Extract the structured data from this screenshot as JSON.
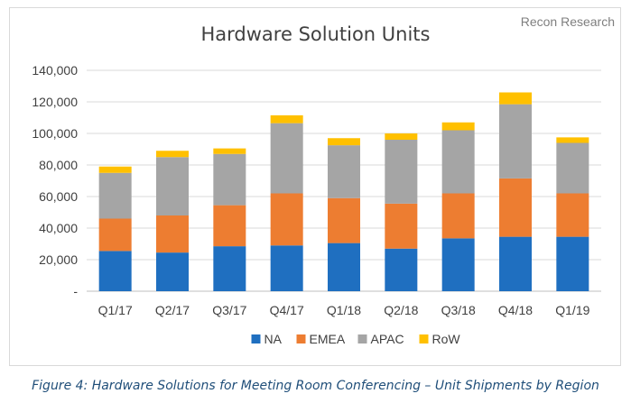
{
  "watermark": "Recon Research",
  "caption": "Figure 4: Hardware Solutions for Meeting Room Conferencing – Unit Shipments by Region",
  "chart_data": {
    "type": "bar",
    "stacked": true,
    "title": "Hardware Solution Units",
    "xlabel": "",
    "ylabel": "",
    "categories": [
      "Q1/17",
      "Q2/17",
      "Q3/17",
      "Q4/17",
      "Q1/18",
      "Q2/18",
      "Q3/18",
      "Q4/18",
      "Q1/19"
    ],
    "series": [
      {
        "name": "NA",
        "color": "#1f6fc0",
        "values": [
          25500,
          24500,
          28500,
          29000,
          30500,
          27000,
          33500,
          34500,
          34500
        ]
      },
      {
        "name": "EMEA",
        "color": "#ed7d31",
        "values": [
          20500,
          23500,
          26000,
          33000,
          28500,
          28500,
          28500,
          37000,
          27500
        ]
      },
      {
        "name": "APAC",
        "color": "#a5a5a5",
        "values": [
          29000,
          37000,
          32500,
          44500,
          33500,
          40500,
          40000,
          47000,
          32000
        ]
      },
      {
        "name": "RoW",
        "color": "#ffc000",
        "values": [
          4000,
          4000,
          3500,
          5000,
          4500,
          4000,
          5000,
          7500,
          3500
        ]
      }
    ],
    "yticks": [
      "-",
      "20,000",
      "40,000",
      "60,000",
      "80,000",
      "100,000",
      "120,000",
      "140,000"
    ],
    "ylim": [
      0,
      140000
    ],
    "grid": true,
    "legend": "bottom"
  }
}
